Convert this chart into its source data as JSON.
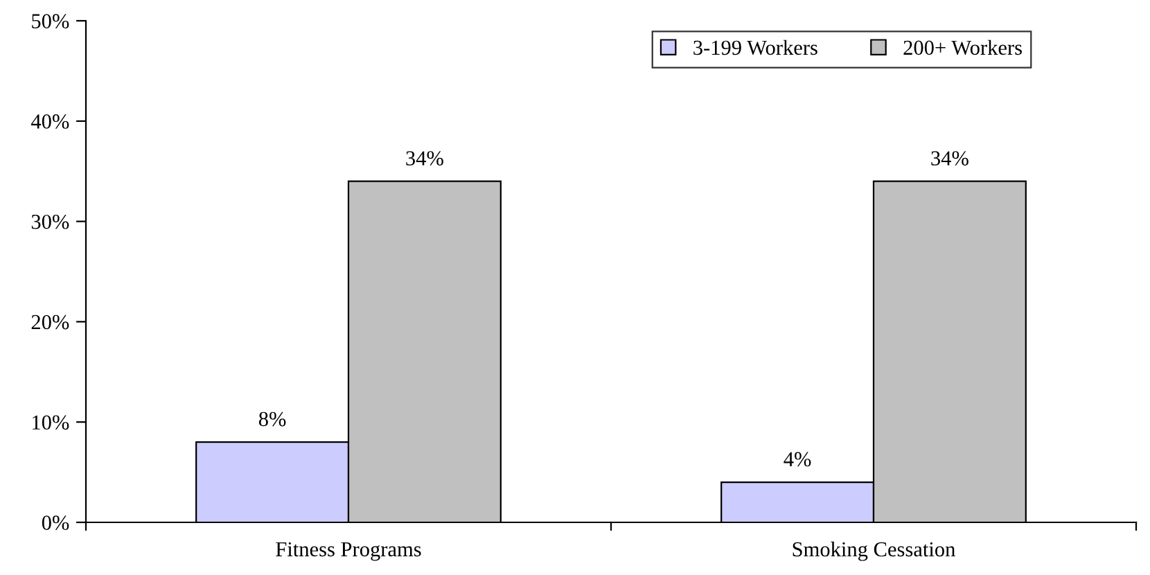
{
  "chart_data": {
    "type": "bar",
    "categories": [
      "Fitness Programs",
      "Smoking Cessation"
    ],
    "series": [
      {
        "name": "3-199 Workers",
        "color": "#ccccff",
        "values": [
          8,
          4
        ],
        "value_labels": [
          "8%",
          "4%"
        ]
      },
      {
        "name": "200+ Workers",
        "color": "#c0c0c0",
        "values": [
          34,
          34
        ],
        "value_labels": [
          "34%",
          "34%"
        ]
      }
    ],
    "ylim": [
      0,
      50
    ],
    "yticks": [
      {
        "value": 0,
        "label": "0%"
      },
      {
        "value": 10,
        "label": "10%"
      },
      {
        "value": 20,
        "label": "20%"
      },
      {
        "value": 30,
        "label": "30%"
      },
      {
        "value": 40,
        "label": "40%"
      },
      {
        "value": 50,
        "label": "50%"
      }
    ],
    "grid": false,
    "legend": "top right"
  }
}
